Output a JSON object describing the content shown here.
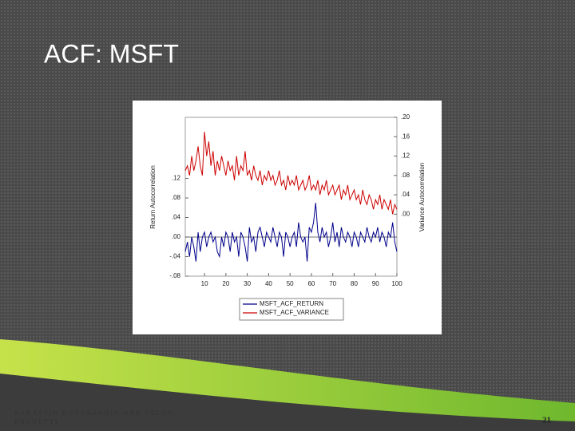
{
  "slide": {
    "title": "ACF: MSFT",
    "footer": "BAHATTIN BUYUKSAHIN AND CELSO BRUNETTI",
    "page": "21"
  },
  "chart_data": {
    "type": "line",
    "x": [
      1,
      2,
      3,
      4,
      5,
      6,
      7,
      8,
      9,
      10,
      11,
      12,
      13,
      14,
      15,
      16,
      17,
      18,
      19,
      20,
      21,
      22,
      23,
      24,
      25,
      26,
      27,
      28,
      29,
      30,
      31,
      32,
      33,
      34,
      35,
      36,
      37,
      38,
      39,
      40,
      41,
      42,
      43,
      44,
      45,
      46,
      47,
      48,
      49,
      50,
      51,
      52,
      53,
      54,
      55,
      56,
      57,
      58,
      59,
      60,
      61,
      62,
      63,
      64,
      65,
      66,
      67,
      68,
      69,
      70,
      71,
      72,
      73,
      74,
      75,
      76,
      77,
      78,
      79,
      80,
      81,
      82,
      83,
      84,
      85,
      86,
      87,
      88,
      89,
      90,
      91,
      92,
      93,
      94,
      95,
      96,
      97,
      98,
      99,
      100
    ],
    "series": [
      {
        "name": "MSFT_ACF_RETURN",
        "color": "#00008b",
        "axis": "y",
        "values": [
          -0.03,
          -0.01,
          -0.04,
          0.0,
          -0.02,
          -0.05,
          0.01,
          -0.03,
          0.0,
          0.01,
          -0.02,
          0.0,
          0.01,
          -0.01,
          0.0,
          -0.03,
          -0.04,
          0.0,
          -0.02,
          0.01,
          0.0,
          -0.03,
          0.01,
          -0.01,
          0.0,
          -0.04,
          0.01,
          0.0,
          -0.02,
          -0.05,
          0.02,
          -0.01,
          0.0,
          -0.03,
          0.01,
          0.02,
          0.0,
          -0.02,
          0.01,
          0.0,
          -0.01,
          0.02,
          0.0,
          -0.02,
          0.01,
          0.0,
          -0.04,
          0.01,
          0.0,
          -0.02,
          0.0,
          0.01,
          -0.02,
          0.03,
          0.0,
          -0.01,
          0.0,
          -0.05,
          0.02,
          0.01,
          0.03,
          0.07,
          0.01,
          -0.01,
          0.02,
          0.0,
          0.01,
          -0.02,
          0.0,
          0.03,
          -0.01,
          0.01,
          -0.02,
          0.02,
          0.0,
          -0.01,
          0.01,
          0.0,
          -0.02,
          0.01,
          0.0,
          -0.02,
          0.01,
          0.0,
          -0.01,
          0.02,
          0.0,
          -0.01,
          0.01,
          0.0,
          0.02,
          -0.01,
          0.01,
          0.0,
          -0.02,
          0.01,
          0.0,
          0.03,
          -0.01,
          -0.03
        ]
      },
      {
        "name": "MSFT_ACF_VARIANCE",
        "color": "#cc0000",
        "axis": "y2",
        "values": [
          0.09,
          0.1,
          0.08,
          0.12,
          0.09,
          0.11,
          0.14,
          0.1,
          0.08,
          0.17,
          0.12,
          0.15,
          0.1,
          0.13,
          0.08,
          0.11,
          0.09,
          0.12,
          0.1,
          0.08,
          0.11,
          0.09,
          0.1,
          0.07,
          0.12,
          0.08,
          0.1,
          0.09,
          0.13,
          0.08,
          0.09,
          0.07,
          0.1,
          0.08,
          0.07,
          0.09,
          0.06,
          0.08,
          0.07,
          0.09,
          0.07,
          0.08,
          0.06,
          0.07,
          0.09,
          0.06,
          0.07,
          0.05,
          0.08,
          0.06,
          0.07,
          0.06,
          0.08,
          0.05,
          0.06,
          0.07,
          0.05,
          0.06,
          0.08,
          0.05,
          0.06,
          0.05,
          0.07,
          0.04,
          0.06,
          0.05,
          0.07,
          0.04,
          0.05,
          0.06,
          0.04,
          0.05,
          0.06,
          0.03,
          0.05,
          0.04,
          0.06,
          0.03,
          0.04,
          0.05,
          0.03,
          0.04,
          0.02,
          0.05,
          0.03,
          0.02,
          0.04,
          0.03,
          0.01,
          0.03,
          0.02,
          0.04,
          0.01,
          0.03,
          0.02,
          0.01,
          0.03,
          0.0,
          0.02,
          0.01
        ]
      }
    ],
    "xlim": [
      1,
      100
    ],
    "xticks": [
      10,
      20,
      30,
      40,
      50,
      60,
      70,
      80,
      90,
      100
    ],
    "ylim": [
      -0.08,
      0.245
    ],
    "yticks": [
      {
        "value": -0.08,
        "label": "-.08"
      },
      {
        "value": -0.04,
        "label": "-.04"
      },
      {
        "value": 0,
        "label": ".00"
      },
      {
        "value": 0.04,
        "label": ".04"
      },
      {
        "value": 0.08,
        "label": ".08"
      },
      {
        "value": 0.12,
        "label": ".12"
      }
    ],
    "y2lim": [
      -0.128,
      0.2
    ],
    "y2ticks": [
      {
        "value": 0,
        "label": ".00"
      },
      {
        "value": 0.04,
        "label": ".04"
      },
      {
        "value": 0.08,
        "label": ".08"
      },
      {
        "value": 0.12,
        "label": ".12"
      },
      {
        "value": 0.16,
        "label": ".16"
      },
      {
        "value": 0.2,
        "label": ".20"
      }
    ],
    "ylabel": "Return Autocorrelation",
    "y2label": "Variance Autocorrelation"
  }
}
